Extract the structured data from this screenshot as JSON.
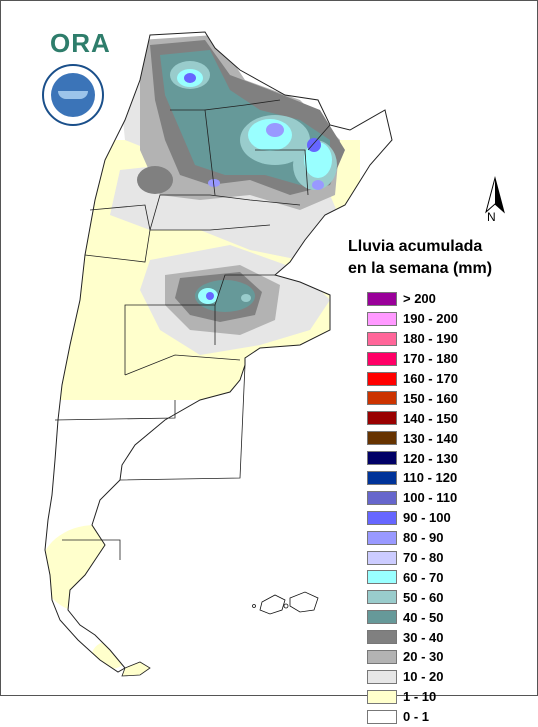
{
  "logo": {
    "text": "ORA",
    "icon": "ora-logo"
  },
  "seal": {
    "icon": "smn-seal"
  },
  "north_arrow": {
    "label": "N",
    "icon": "north-arrow-icon"
  },
  "legend": {
    "title_line1": "Lluvia acumulada",
    "title_line2": "en la semana (mm)",
    "items": [
      {
        "label": "> 200",
        "color": "#990099"
      },
      {
        "label": "190 - 200",
        "color": "#ff99ff"
      },
      {
        "label": "180 - 190",
        "color": "#ff6699"
      },
      {
        "label": "170 - 180",
        "color": "#ff0066"
      },
      {
        "label": "160 - 170",
        "color": "#ff0000"
      },
      {
        "label": "150 - 160",
        "color": "#cc3300"
      },
      {
        "label": "140 - 150",
        "color": "#990000"
      },
      {
        "label": "130 - 140",
        "color": "#663300"
      },
      {
        "label": "120 - 130",
        "color": "#000066"
      },
      {
        "label": "110 - 120",
        "color": "#003399"
      },
      {
        "label": "100 - 110",
        "color": "#6666cc"
      },
      {
        "label": "90 - 100",
        "color": "#6666ff"
      },
      {
        "label": "80 - 90",
        "color": "#9999ff"
      },
      {
        "label": "70 - 80",
        "color": "#ccccff"
      },
      {
        "label": "60 - 70",
        "color": "#99ffff"
      },
      {
        "label": "50 - 60",
        "color": "#99cccc"
      },
      {
        "label": "40 - 50",
        "color": "#669999"
      },
      {
        "label": "30 - 40",
        "color": "#808080"
      },
      {
        "label": "20 - 30",
        "color": "#b3b3b3"
      },
      {
        "label": "10 - 20",
        "color": "#e6e6e6"
      },
      {
        "label": "1 - 10",
        "color": "#ffffcc"
      },
      {
        "label": "0 - 1",
        "color": "#ffffff"
      }
    ]
  }
}
